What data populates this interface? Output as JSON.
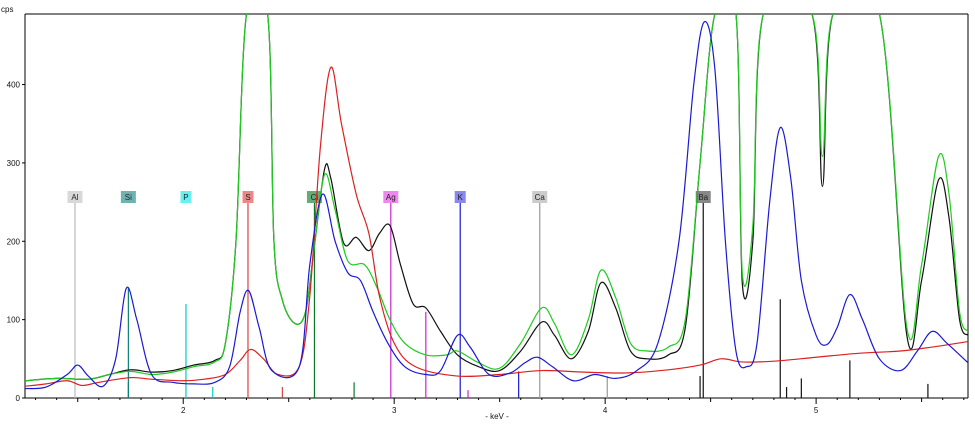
{
  "chart_data": {
    "type": "line",
    "title": "",
    "ylabel": "cps",
    "xlabel": "- keV -",
    "xlim": [
      1.25,
      5.72
    ],
    "ylim": [
      0,
      490
    ],
    "grid": false,
    "legend": "none",
    "x_ticks": [
      2,
      3,
      4,
      5
    ],
    "y_ticks": [
      0,
      100,
      200,
      300,
      400
    ],
    "series": [
      {
        "color": "#111111",
        "points": [
          [
            1.25,
            22
          ],
          [
            1.4,
            25
          ],
          [
            1.55,
            24
          ],
          [
            1.65,
            30
          ],
          [
            1.75,
            36
          ],
          [
            1.85,
            33
          ],
          [
            1.95,
            35
          ],
          [
            2.05,
            42
          ],
          [
            2.15,
            48
          ],
          [
            2.2,
            70
          ],
          [
            2.25,
            200
          ],
          [
            2.3,
            490
          ],
          [
            2.4,
            490
          ],
          [
            2.43,
            200
          ],
          [
            2.47,
            125
          ],
          [
            2.53,
            95
          ],
          [
            2.58,
            110
          ],
          [
            2.62,
            190
          ],
          [
            2.67,
            292
          ],
          [
            2.7,
            280
          ],
          [
            2.76,
            198
          ],
          [
            2.82,
            205
          ],
          [
            2.88,
            188
          ],
          [
            2.93,
            210
          ],
          [
            2.98,
            220
          ],
          [
            3.03,
            170
          ],
          [
            3.09,
            120
          ],
          [
            3.15,
            115
          ],
          [
            3.22,
            85
          ],
          [
            3.3,
            55
          ],
          [
            3.4,
            40
          ],
          [
            3.5,
            35
          ],
          [
            3.6,
            60
          ],
          [
            3.7,
            97
          ],
          [
            3.76,
            80
          ],
          [
            3.84,
            50
          ],
          [
            3.92,
            85
          ],
          [
            3.98,
            147
          ],
          [
            4.05,
            115
          ],
          [
            4.12,
            60
          ],
          [
            4.2,
            50
          ],
          [
            4.3,
            55
          ],
          [
            4.38,
            90
          ],
          [
            4.45,
            300
          ],
          [
            4.52,
            490
          ],
          [
            4.62,
            490
          ],
          [
            4.65,
            147
          ],
          [
            4.7,
            200
          ],
          [
            4.75,
            490
          ],
          [
            4.98,
            490
          ],
          [
            5.03,
            270
          ],
          [
            5.08,
            490
          ],
          [
            5.3,
            490
          ],
          [
            5.43,
            80
          ],
          [
            5.5,
            150
          ],
          [
            5.58,
            278
          ],
          [
            5.63,
            230
          ],
          [
            5.68,
            100
          ],
          [
            5.72,
            80
          ]
        ]
      },
      {
        "color": "#1fcc1f",
        "points": [
          [
            1.25,
            22
          ],
          [
            1.4,
            25
          ],
          [
            1.55,
            24
          ],
          [
            1.65,
            30
          ],
          [
            1.75,
            34
          ],
          [
            1.85,
            30
          ],
          [
            1.95,
            33
          ],
          [
            2.05,
            40
          ],
          [
            2.15,
            46
          ],
          [
            2.2,
            70
          ],
          [
            2.25,
            200
          ],
          [
            2.3,
            490
          ],
          [
            2.4,
            490
          ],
          [
            2.43,
            200
          ],
          [
            2.47,
            125
          ],
          [
            2.53,
            95
          ],
          [
            2.58,
            110
          ],
          [
            2.62,
            190
          ],
          [
            2.67,
            285
          ],
          [
            2.72,
            240
          ],
          [
            2.78,
            175
          ],
          [
            2.86,
            170
          ],
          [
            2.92,
            140
          ],
          [
            2.98,
            100
          ],
          [
            3.05,
            70
          ],
          [
            3.15,
            55
          ],
          [
            3.25,
            55
          ],
          [
            3.3,
            60
          ],
          [
            3.4,
            45
          ],
          [
            3.5,
            38
          ],
          [
            3.6,
            70
          ],
          [
            3.7,
            115
          ],
          [
            3.76,
            95
          ],
          [
            3.84,
            55
          ],
          [
            3.92,
            100
          ],
          [
            3.98,
            163
          ],
          [
            4.05,
            128
          ],
          [
            4.12,
            70
          ],
          [
            4.2,
            60
          ],
          [
            4.3,
            65
          ],
          [
            4.38,
            100
          ],
          [
            4.45,
            300
          ],
          [
            4.52,
            490
          ],
          [
            4.62,
            490
          ],
          [
            4.65,
            160
          ],
          [
            4.7,
            220
          ],
          [
            4.75,
            490
          ],
          [
            4.98,
            490
          ],
          [
            5.03,
            308
          ],
          [
            5.08,
            490
          ],
          [
            5.3,
            490
          ],
          [
            5.43,
            90
          ],
          [
            5.5,
            170
          ],
          [
            5.58,
            308
          ],
          [
            5.63,
            260
          ],
          [
            5.68,
            110
          ],
          [
            5.72,
            85
          ]
        ]
      },
      {
        "color": "#dd2020",
        "points": [
          [
            1.25,
            15
          ],
          [
            1.35,
            18
          ],
          [
            1.45,
            22
          ],
          [
            1.52,
            16
          ],
          [
            1.6,
            20
          ],
          [
            1.75,
            26
          ],
          [
            1.85,
            24
          ],
          [
            2.0,
            22
          ],
          [
            2.1,
            24
          ],
          [
            2.2,
            30
          ],
          [
            2.27,
            48
          ],
          [
            2.32,
            62
          ],
          [
            2.38,
            50
          ],
          [
            2.45,
            30
          ],
          [
            2.55,
            40
          ],
          [
            2.6,
            130
          ],
          [
            2.65,
            320
          ],
          [
            2.7,
            422
          ],
          [
            2.75,
            350
          ],
          [
            2.82,
            260
          ],
          [
            2.88,
            210
          ],
          [
            2.93,
            130
          ],
          [
            3.0,
            70
          ],
          [
            3.1,
            40
          ],
          [
            3.3,
            28
          ],
          [
            3.5,
            30
          ],
          [
            3.7,
            35
          ],
          [
            3.9,
            33
          ],
          [
            4.1,
            32
          ],
          [
            4.3,
            36
          ],
          [
            4.45,
            42
          ],
          [
            4.55,
            50
          ],
          [
            4.65,
            46
          ],
          [
            4.8,
            47
          ],
          [
            5.0,
            52
          ],
          [
            5.2,
            57
          ],
          [
            5.4,
            60
          ],
          [
            5.55,
            65
          ],
          [
            5.72,
            72
          ]
        ]
      },
      {
        "color": "#1a1ad4",
        "points": [
          [
            1.25,
            12
          ],
          [
            1.35,
            14
          ],
          [
            1.45,
            30
          ],
          [
            1.5,
            42
          ],
          [
            1.55,
            28
          ],
          [
            1.62,
            15
          ],
          [
            1.68,
            50
          ],
          [
            1.73,
            140
          ],
          [
            1.78,
            100
          ],
          [
            1.85,
            30
          ],
          [
            1.95,
            20
          ],
          [
            2.05,
            18
          ],
          [
            2.15,
            20
          ],
          [
            2.22,
            40
          ],
          [
            2.27,
            110
          ],
          [
            2.31,
            137
          ],
          [
            2.36,
            90
          ],
          [
            2.42,
            35
          ],
          [
            2.55,
            40
          ],
          [
            2.6,
            170
          ],
          [
            2.66,
            260
          ],
          [
            2.72,
            200
          ],
          [
            2.78,
            160
          ],
          [
            2.84,
            150
          ],
          [
            2.9,
            110
          ],
          [
            2.97,
            70
          ],
          [
            3.05,
            40
          ],
          [
            3.15,
            30
          ],
          [
            3.22,
            35
          ],
          [
            3.3,
            80
          ],
          [
            3.36,
            65
          ],
          [
            3.45,
            30
          ],
          [
            3.55,
            32
          ],
          [
            3.62,
            45
          ],
          [
            3.68,
            52
          ],
          [
            3.75,
            40
          ],
          [
            3.85,
            22
          ],
          [
            3.95,
            30
          ],
          [
            4.05,
            25
          ],
          [
            4.15,
            35
          ],
          [
            4.25,
            70
          ],
          [
            4.35,
            200
          ],
          [
            4.42,
            400
          ],
          [
            4.47,
            480
          ],
          [
            4.52,
            420
          ],
          [
            4.57,
            200
          ],
          [
            4.62,
            60
          ],
          [
            4.67,
            40
          ],
          [
            4.72,
            70
          ],
          [
            4.78,
            250
          ],
          [
            4.83,
            345
          ],
          [
            4.88,
            280
          ],
          [
            4.93,
            150
          ],
          [
            5.0,
            80
          ],
          [
            5.05,
            68
          ],
          [
            5.1,
            90
          ],
          [
            5.16,
            132
          ],
          [
            5.22,
            100
          ],
          [
            5.3,
            50
          ],
          [
            5.4,
            35
          ],
          [
            5.48,
            60
          ],
          [
            5.55,
            85
          ],
          [
            5.62,
            70
          ],
          [
            5.72,
            45
          ]
        ]
      }
    ],
    "element_markers": [
      {
        "label": "Al",
        "kev": 1.487,
        "color": "#bbbbbb",
        "label_bg": "#d8d8d8",
        "height": 250
      },
      {
        "label": "Si",
        "kev": 1.74,
        "color": "#0e7e78",
        "label_bg": "#6fb3b0",
        "height": 140
      },
      {
        "label": "P",
        "kev": 2.013,
        "color": "#00cccc",
        "label_bg": "#66f0f0",
        "height": 120
      },
      {
        "label": "S",
        "kev": 2.307,
        "color": "#e04040",
        "label_bg": "#ee8888",
        "height": 250
      },
      {
        "label": "Cl",
        "kev": 2.622,
        "color": "#0a7a2a",
        "label_bg": "#66aa77",
        "height": 250
      },
      {
        "label": "Ag",
        "kev": 2.984,
        "color": "#cc22cc",
        "label_bg": "#ee88ee",
        "height": 250
      },
      {
        "label": "K",
        "kev": 3.313,
        "color": "#1a1ad4",
        "label_bg": "#8888ee",
        "height": 250
      },
      {
        "label": "Ca",
        "kev": 3.69,
        "color": "#999999",
        "label_bg": "#cccccc",
        "height": 250
      },
      {
        "label": "Ba",
        "kev": 4.465,
        "color": "#111111",
        "label_bg": "#888888",
        "height": 250
      }
    ],
    "minor_lines": [
      {
        "kev": 1.74,
        "height": 20,
        "color": "#0e7e78"
      },
      {
        "kev": 2.14,
        "height": 14,
        "color": "#00cccc"
      },
      {
        "kev": 2.47,
        "height": 14,
        "color": "#e04040"
      },
      {
        "kev": 2.81,
        "height": 20,
        "color": "#0a7a2a"
      },
      {
        "kev": 3.15,
        "height": 110,
        "color": "#cc22cc"
      },
      {
        "kev": 3.35,
        "height": 10,
        "color": "#cc22cc"
      },
      {
        "kev": 3.59,
        "height": 34,
        "color": "#1a1ad4"
      },
      {
        "kev": 4.01,
        "height": 28,
        "color": "#999999"
      },
      {
        "kev": 4.45,
        "height": 28,
        "color": "#111111"
      },
      {
        "kev": 4.83,
        "height": 126,
        "color": "#111111"
      },
      {
        "kev": 4.86,
        "height": 14,
        "color": "#111111"
      },
      {
        "kev": 4.93,
        "height": 25,
        "color": "#111111"
      },
      {
        "kev": 5.16,
        "height": 48,
        "color": "#111111"
      },
      {
        "kev": 5.53,
        "height": 18,
        "color": "#111111"
      }
    ]
  }
}
